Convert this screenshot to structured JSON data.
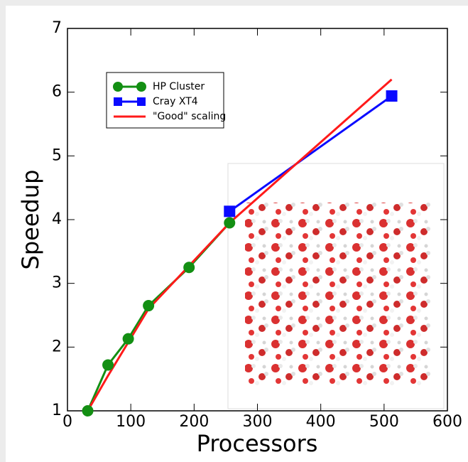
{
  "chart_data": {
    "type": "line",
    "xlabel": "Processors",
    "ylabel": "Speedup",
    "xlim": [
      0,
      600
    ],
    "ylim": [
      1,
      7
    ],
    "xticks": [
      0,
      100,
      200,
      300,
      400,
      500,
      600
    ],
    "yticks": [
      1,
      2,
      3,
      4,
      5,
      6,
      7
    ],
    "legend": "upper left",
    "series": [
      {
        "name": "HP Cluster",
        "color": "#138f13",
        "marker": "circle",
        "x": [
          32,
          64,
          96,
          128,
          192,
          256
        ],
        "values": [
          1,
          1.72,
          2.13,
          2.65,
          3.25,
          3.95
        ]
      },
      {
        "name": "Cray XT4",
        "color": "#0a0aff",
        "marker": "square",
        "x": [
          256,
          512
        ],
        "values": [
          4.13,
          5.94
        ]
      },
      {
        "name": "\"Good\" scaling",
        "color": "#ff1a1a",
        "marker": "none",
        "x": [
          32,
          64,
          128,
          256,
          512
        ],
        "values": [
          1,
          1.55,
          2.6,
          3.95,
          6.2
        ]
      }
    ]
  }
}
